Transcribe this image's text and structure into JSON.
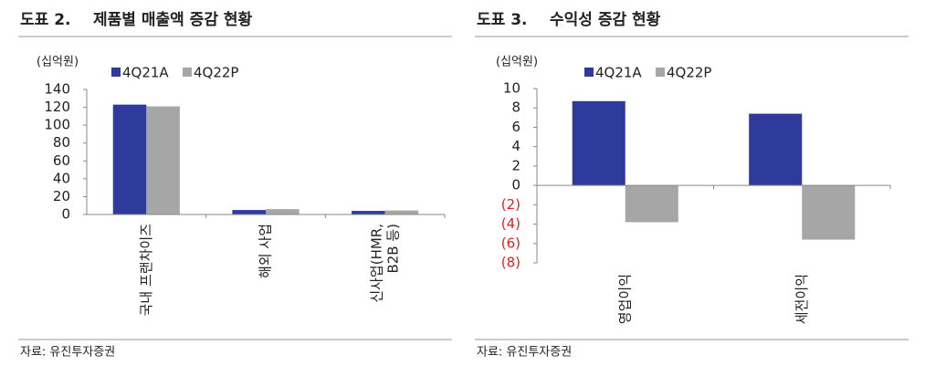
{
  "chart_data": [
    {
      "type": "bar",
      "label": "도표 2.",
      "title": "제품별 매출액 증감 현황",
      "unit": "(십억원)",
      "categories": [
        "국내 프랜차이즈",
        "해외 사업",
        "신사업(HMR, B2B 등)"
      ],
      "series": [
        {
          "name": "4Q21A",
          "color": "#2e3a9c",
          "values": [
            123,
            5,
            4
          ]
        },
        {
          "name": "4Q22P",
          "color": "#a6a6a6",
          "values": [
            121,
            6,
            4.5
          ]
        }
      ],
      "ylim": [
        0,
        140
      ],
      "yticks": [
        0,
        20,
        40,
        60,
        80,
        100,
        120,
        140
      ],
      "source": "자료: 유진투자증권"
    },
    {
      "type": "bar",
      "label": "도표 3.",
      "title": "수익성 증감 현황",
      "unit": "(십억원)",
      "categories": [
        "영업이익",
        "세전이익"
      ],
      "series": [
        {
          "name": "4Q21A",
          "color": "#2e3a9c",
          "values": [
            8.7,
            7.4
          ]
        },
        {
          "name": "4Q22P",
          "color": "#a6a6a6",
          "values": [
            -3.8,
            -5.6
          ]
        }
      ],
      "ylim": [
        -8,
        10
      ],
      "yticks": [
        {
          "value": -8,
          "label": "(8)"
        },
        {
          "value": -6,
          "label": "(6)"
        },
        {
          "value": -4,
          "label": "(4)"
        },
        {
          "value": -2,
          "label": "(2)"
        },
        0,
        2,
        4,
        6,
        8,
        10
      ],
      "negative_tick_color": "#e02020",
      "source": "자료: 유진투자증권"
    }
  ]
}
